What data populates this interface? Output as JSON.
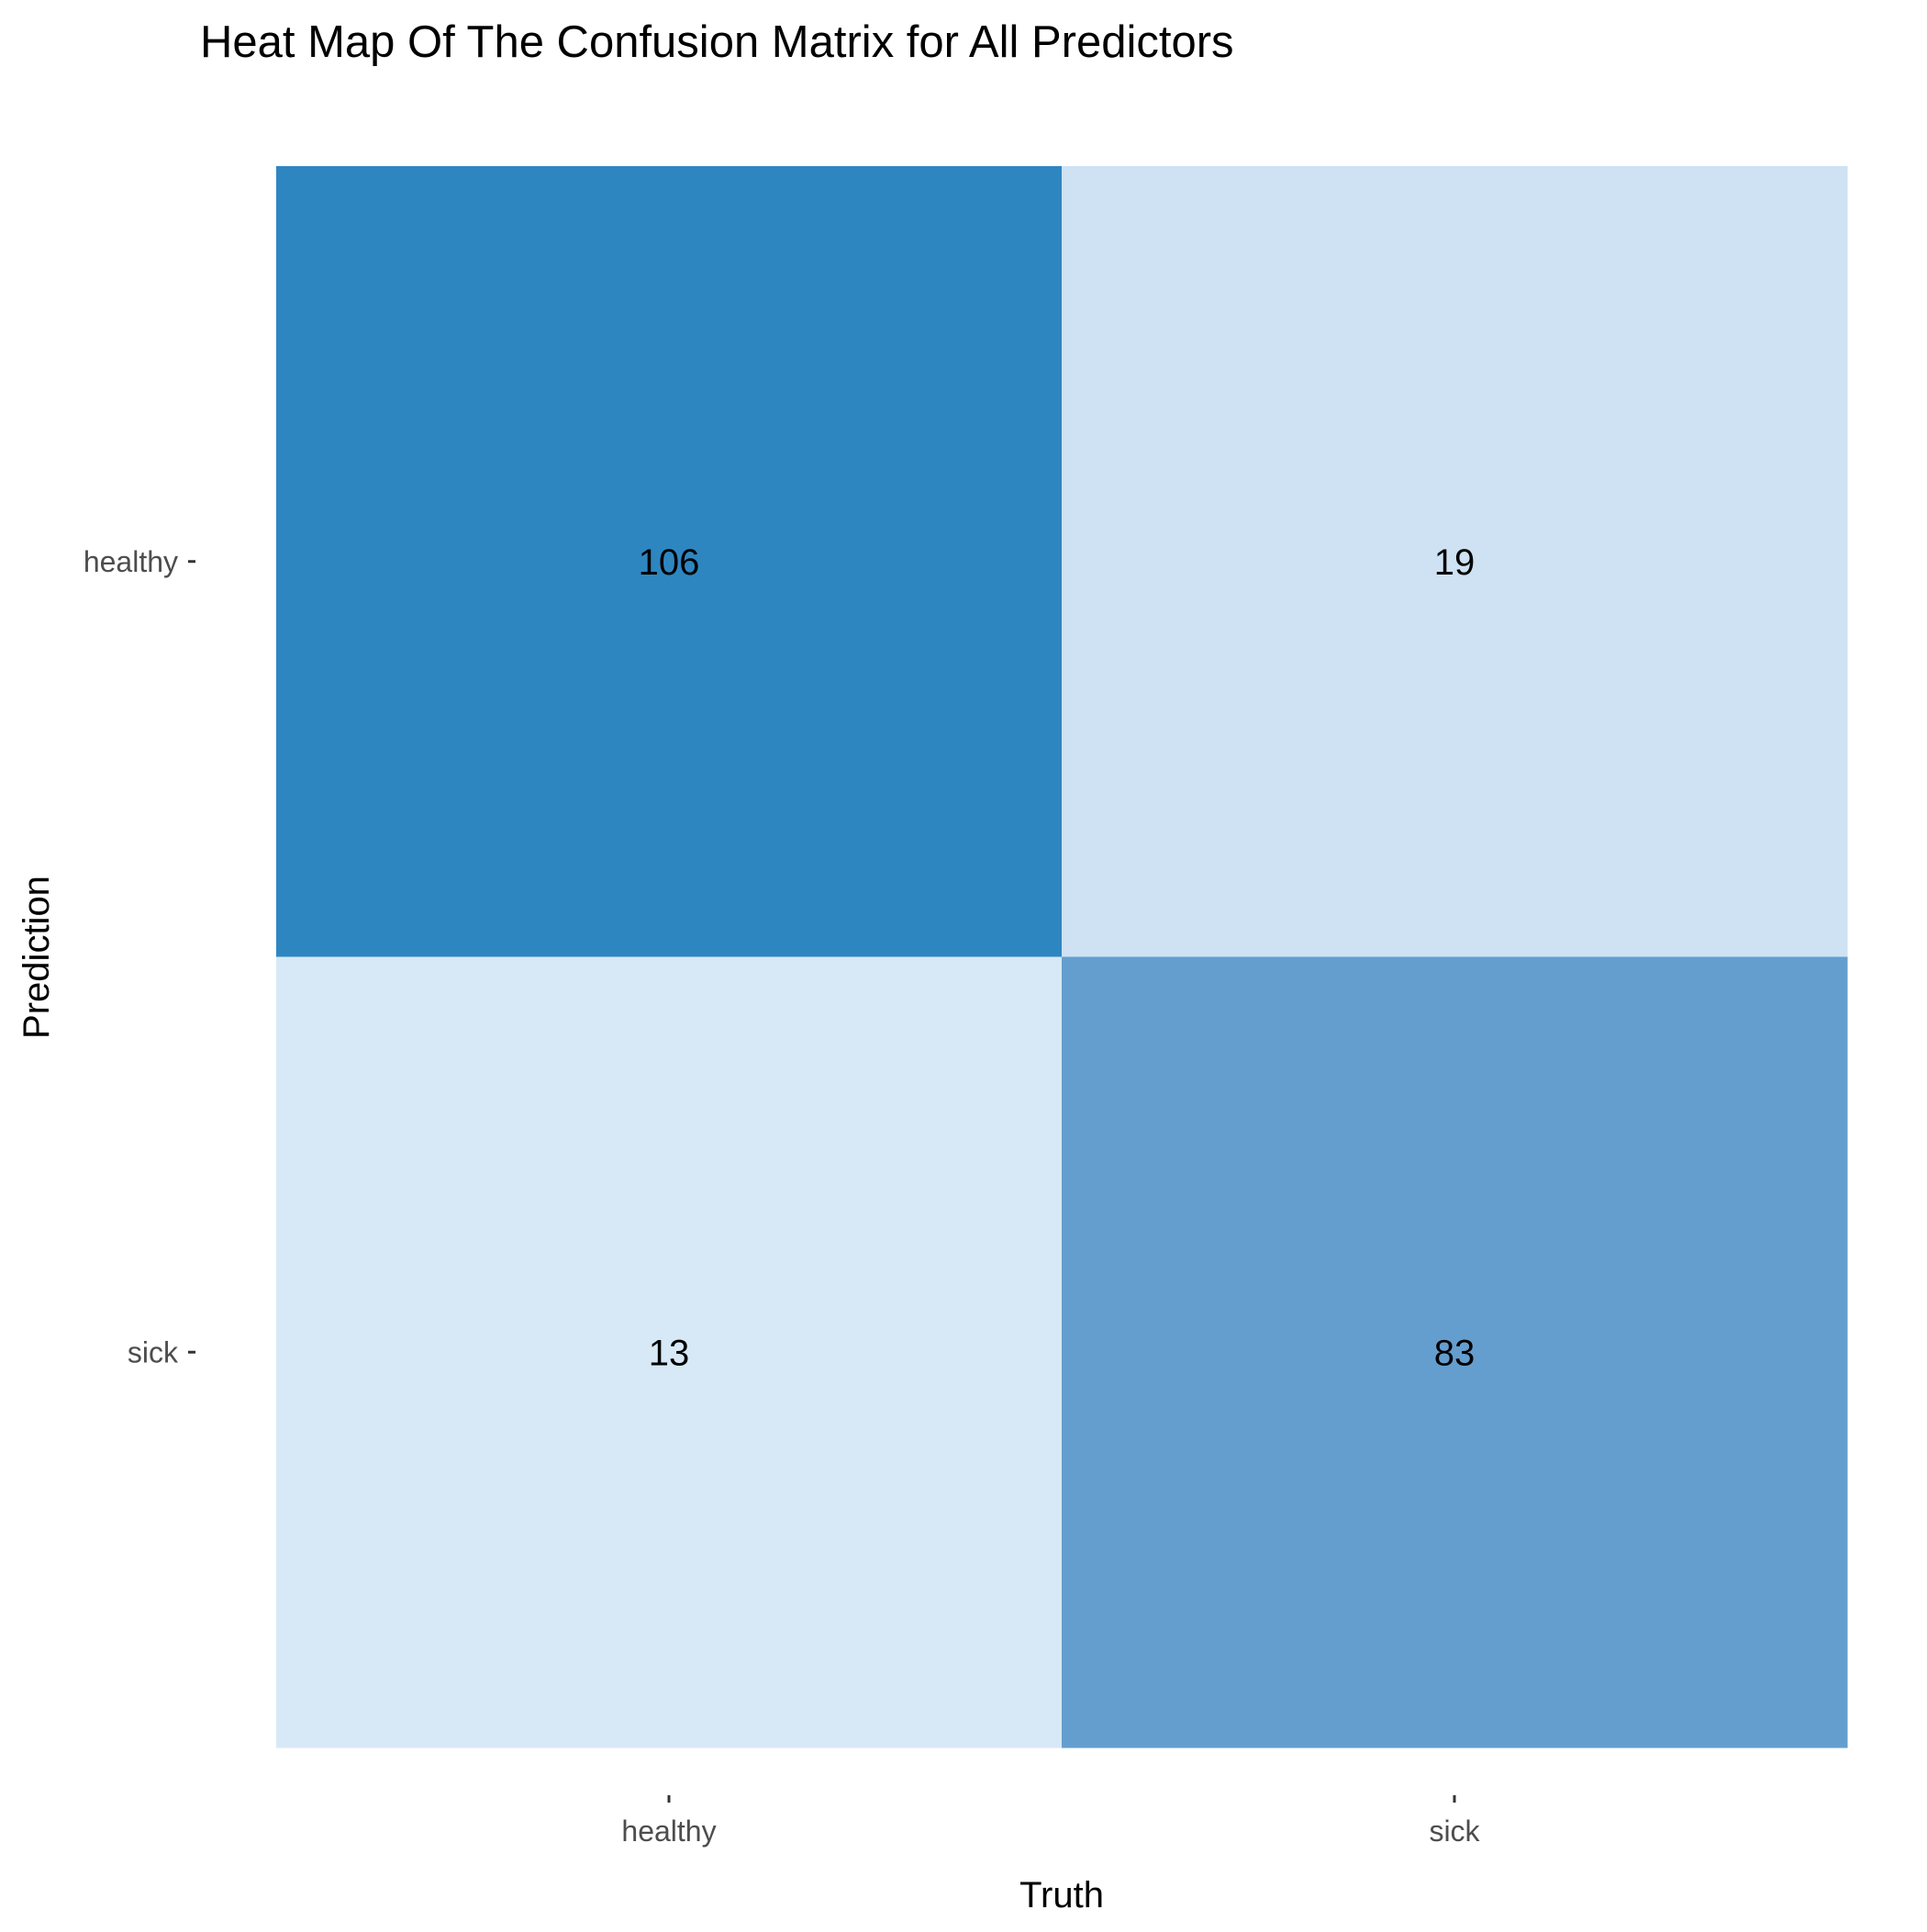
{
  "chart_data": {
    "type": "heatmap",
    "title": "Heat Map Of The Confusion Matrix for All Predictors",
    "xlabel": "Truth",
    "ylabel": "Prediction",
    "x_categories": [
      "healthy",
      "sick"
    ],
    "y_categories": [
      "healthy",
      "sick"
    ],
    "cells": [
      {
        "truth": "healthy",
        "prediction": "healthy",
        "value": 106,
        "color": "#2e86c1"
      },
      {
        "truth": "sick",
        "prediction": "healthy",
        "value": 19,
        "color": "#cee2f3"
      },
      {
        "truth": "healthy",
        "prediction": "sick",
        "value": 13,
        "color": "#d7e9f7"
      },
      {
        "truth": "sick",
        "prediction": "sick",
        "value": 83,
        "color": "#649ecf"
      }
    ],
    "grid": false,
    "legend": "none"
  }
}
